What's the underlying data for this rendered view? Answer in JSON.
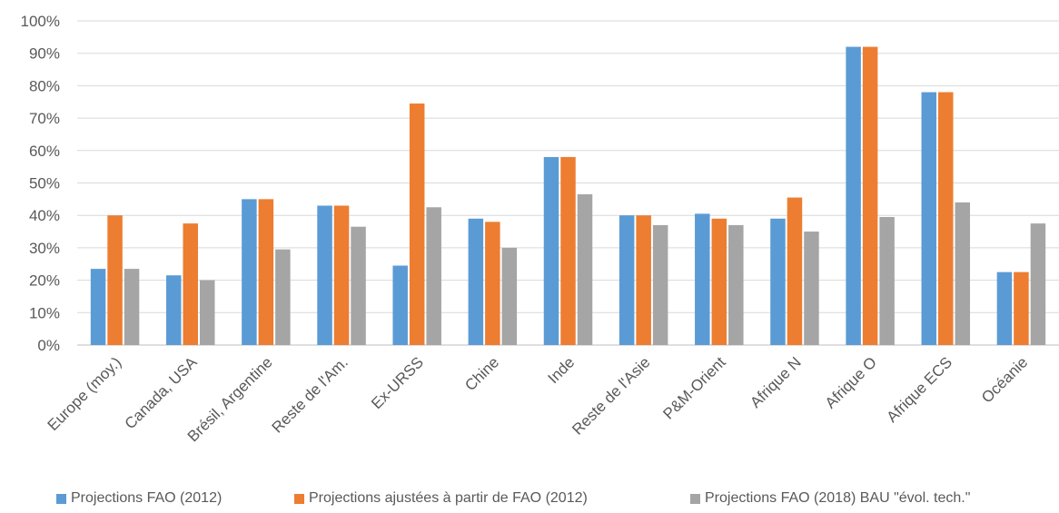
{
  "chart_data": {
    "type": "bar",
    "categories": [
      "Europe (moy.)",
      "Canada, USA",
      "Brésil, Argentine",
      "Reste de l'Am.",
      "Ex-URSS",
      "Chine",
      "Inde",
      "Reste de l'Asie",
      "P&M-Orient",
      "Afrique N",
      "Afrique O",
      "Afrique ECS",
      "Océanie"
    ],
    "series": [
      {
        "name": "Projections FAO (2012)",
        "color": "#5B9BD5",
        "values": [
          23.5,
          21.5,
          45,
          43,
          24.5,
          39,
          58,
          40,
          40.5,
          39,
          92,
          78,
          22.5
        ]
      },
      {
        "name": "Projections ajustées à partir de FAO (2012)",
        "color": "#ED7D31",
        "values": [
          40,
          37.5,
          45,
          43,
          74.5,
          38,
          58,
          40,
          39,
          45.5,
          92,
          78,
          22.5
        ]
      },
      {
        "name": "Projections FAO (2018) BAU \"évol. tech.\"",
        "color": "#A5A5A5",
        "values": [
          23.5,
          20,
          29.5,
          36.5,
          42.5,
          30,
          46.5,
          37,
          37,
          35,
          39.5,
          44,
          37.5
        ]
      }
    ],
    "yticks": [
      "0%",
      "10%",
      "20%",
      "30%",
      "40%",
      "50%",
      "60%",
      "70%",
      "80%",
      "90%",
      "100%"
    ],
    "ylim": [
      0,
      100
    ],
    "grid": true,
    "legend": "bottom"
  }
}
